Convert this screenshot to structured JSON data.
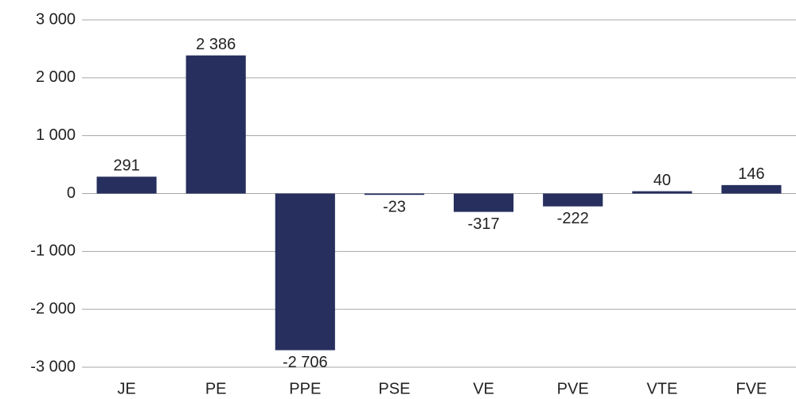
{
  "chart_data": {
    "type": "bar",
    "categories": [
      "JE",
      "PE",
      "PPE",
      "PSE",
      "VE",
      "PVE",
      "VTE",
      "FVE"
    ],
    "values": [
      291,
      2386,
      -2706,
      -23,
      -317,
      -222,
      40,
      146
    ],
    "value_labels": [
      "291",
      "2 386",
      "-2 706",
      "-23",
      "-317",
      "-222",
      "40",
      "146"
    ],
    "color": "#262f5e",
    "ylim": [
      -3000,
      3000
    ],
    "yticks": [
      {
        "value": -3000,
        "label": "-3 000"
      },
      {
        "value": -2000,
        "label": "-2 000"
      },
      {
        "value": -1000,
        "label": "-1 000"
      },
      0,
      {
        "value": 1000,
        "label": "1 000"
      },
      {
        "value": 2000,
        "label": "2 000"
      },
      {
        "value": 3000,
        "label": "3 000"
      }
    ],
    "grid": true
  }
}
